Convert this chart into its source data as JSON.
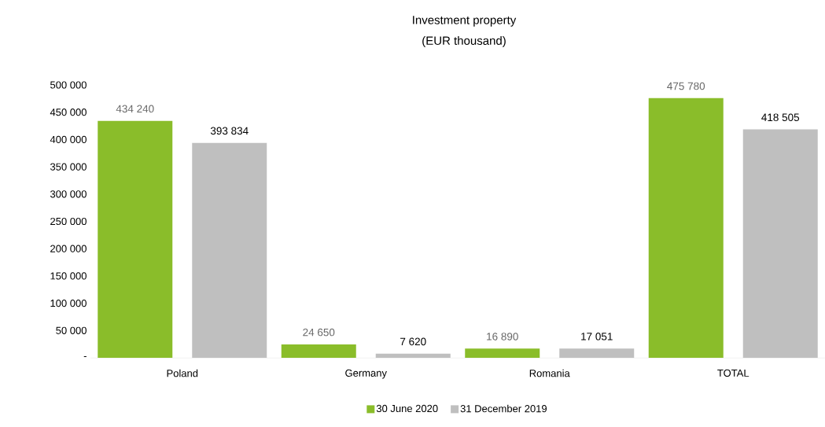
{
  "chart_data": {
    "type": "bar",
    "title": "Investment property",
    "subtitle": "(EUR thousand)",
    "categories": [
      "Poland",
      "Germany",
      "Romania",
      "TOTAL"
    ],
    "series": [
      {
        "name": "30 June 2020",
        "color": "#8abd2a",
        "values": [
          434240,
          24650,
          16890,
          475780
        ],
        "value_labels": [
          "434 240",
          "24 650",
          "16 890",
          "475 780"
        ]
      },
      {
        "name": "31 December 2019",
        "color": "#bfbfbf",
        "values": [
          393834,
          7620,
          17051,
          418505
        ],
        "value_labels": [
          "393 834",
          "7 620",
          "17 051",
          "418 505"
        ]
      }
    ],
    "ylim": [
      0,
      500000
    ],
    "yticks": [
      {
        "value": 0,
        "label": "-"
      },
      {
        "value": 50000,
        "label": "50 000"
      },
      {
        "value": 100000,
        "label": "100 000"
      },
      {
        "value": 150000,
        "label": "150 000"
      },
      {
        "value": 200000,
        "label": "200 000"
      },
      {
        "value": 250000,
        "label": "250 000"
      },
      {
        "value": 300000,
        "label": "300 000"
      },
      {
        "value": 350000,
        "label": "350 000"
      },
      {
        "value": 400000,
        "label": "400 000"
      },
      {
        "value": 450000,
        "label": "450 000"
      },
      {
        "value": 500000,
        "label": "500 000"
      }
    ],
    "grid": false,
    "legend": "bottom"
  }
}
